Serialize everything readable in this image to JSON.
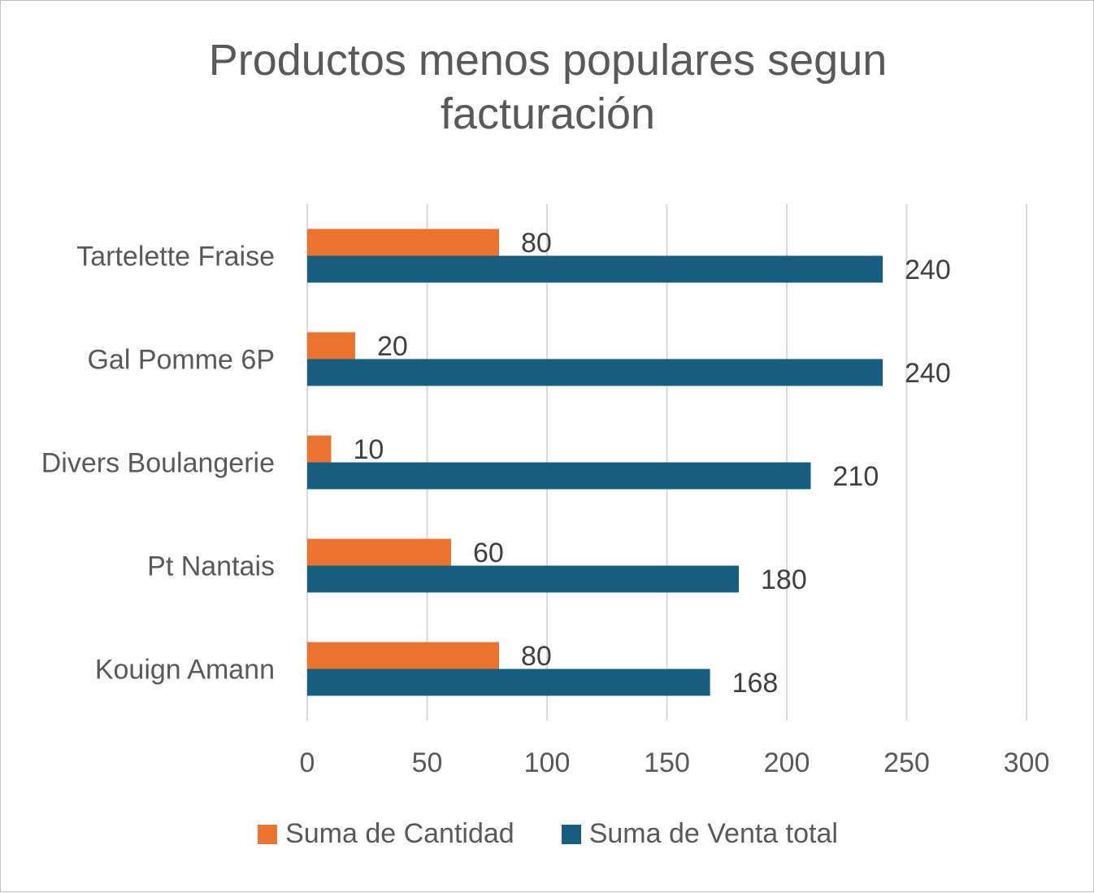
{
  "chart_data": {
    "type": "bar",
    "orientation": "horizontal",
    "title_lines": [
      "Productos menos populares segun",
      "facturación"
    ],
    "categories": [
      "Kouign Amann",
      "Pt Nantais",
      "Divers Boulangerie",
      "Gal Pomme 6P",
      "Tartelette Fraise"
    ],
    "series": [
      {
        "name": "Suma de Cantidad",
        "color": "#e9732f",
        "values": [
          80,
          60,
          10,
          20,
          80
        ]
      },
      {
        "name": "Suma de Venta total",
        "color": "#165d80",
        "values": [
          168,
          180,
          210,
          240,
          240
        ]
      }
    ],
    "xlim": [
      0,
      300
    ],
    "xticks": [
      0,
      50,
      100,
      150,
      200,
      250,
      300
    ],
    "grid": "vertical",
    "legend_position": "bottom",
    "data_labels": true
  }
}
